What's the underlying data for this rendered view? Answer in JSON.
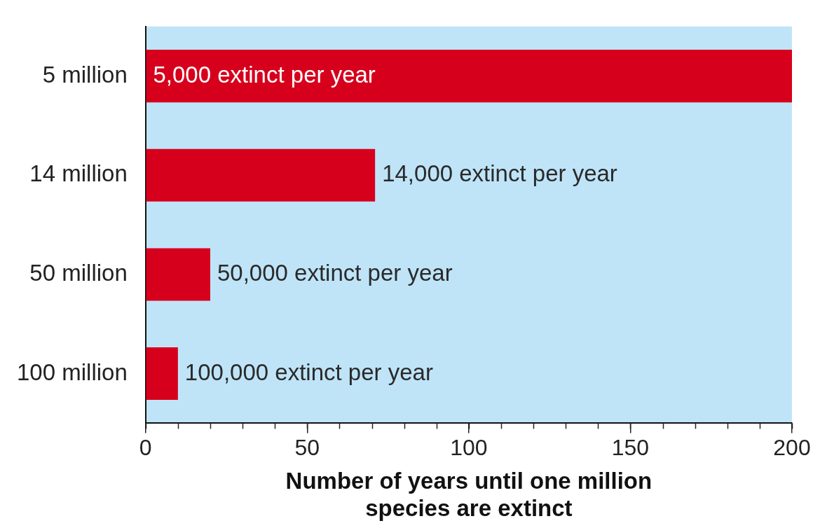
{
  "chart_data": {
    "type": "bar",
    "orientation": "horizontal",
    "x_label": "Number of years until one million species are extinct",
    "categories": [
      "5 million",
      "14 million",
      "50 million",
      "100 million"
    ],
    "values": [
      200,
      71,
      20,
      10
    ],
    "annotations": [
      "5,000 extinct per year",
      "14,000 extinct per year",
      "50,000 extinct per year",
      "100,000 extinct per year"
    ],
    "color": "#d7001c",
    "xlim": [
      0,
      200
    ],
    "xticks": [
      0,
      50,
      100,
      150,
      200
    ],
    "grid": false
  }
}
